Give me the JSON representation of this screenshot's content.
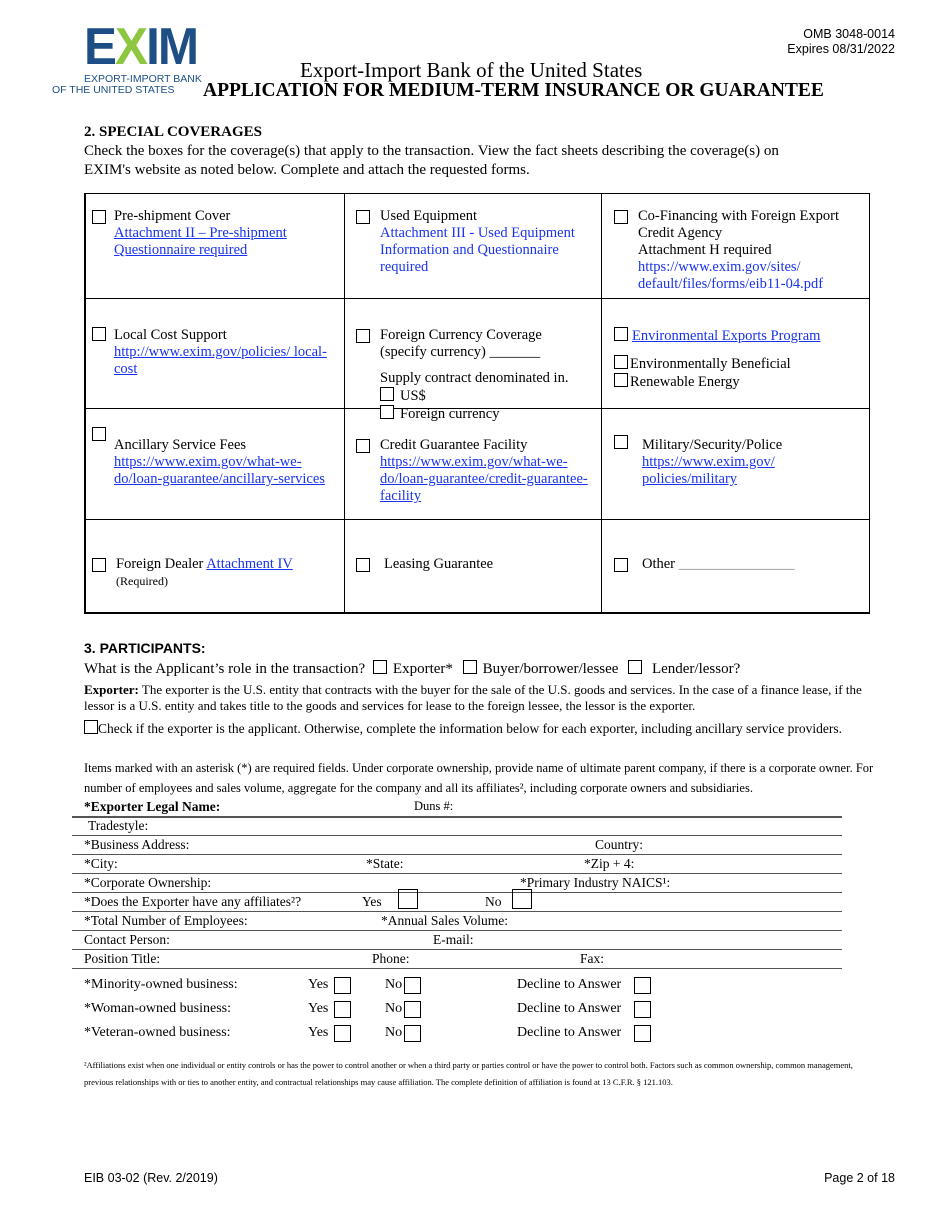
{
  "header": {
    "logo_text": "EXIM",
    "logo_sub1": "EXPORT-IMPORT BANK",
    "logo_sub2": "OF THE UNITED STATES",
    "omb": "OMB 3048-0014",
    "expires": "Expires 08/31/2022",
    "org": "Export-Import Bank of the United States",
    "title": "APPLICATION FOR MEDIUM-TERM INSURANCE OR GUARANTEE",
    "colors": {
      "logo_blue": "#1d4f86",
      "logo_green": "#8dc63f",
      "link": "#1a33ee"
    }
  },
  "section2": {
    "num": "2",
    "heading": ". SPECIAL COVERAGES",
    "intro": "Check the boxes for the coverage(s) that apply to the transaction.  View the fact sheets describing the coverage(s) on EXIM's website as noted below.  Complete and attach the requested forms.",
    "cells": {
      "preshipment": {
        "label": "Pre-shipment Cover",
        "link": "Attachment II – Pre-shipment Questionnaire required"
      },
      "used": {
        "label": "Used Equipment",
        "link": "Attachment III - Used Equipment Information and Questionnaire required"
      },
      "cofin": {
        "label": "Co-Financing with Foreign Export Credit Agency",
        "note": "Attachment H required",
        "link": "https://www.exim.gov/sites/ default/files/forms/eib11-04.pdf"
      },
      "localcost": {
        "label": "Local Cost Support",
        "link": "http://www.exim.gov/policies/ local-cost"
      },
      "currency": {
        "label": "Foreign Currency Coverage",
        "specify": "(specify currency) _______",
        "denominated": "Supply contract denominated in.",
        "opt1": "US$",
        "opt2": "Foreign currency"
      },
      "environmental": {
        "label": "Environmental Exports Program",
        "opt1": "Environmentally Beneficial",
        "opt2": "Renewable Energy"
      },
      "ancillary": {
        "label": "Ancillary Service Fees",
        "link": "https://www.exim.gov/what-we-do/loan-guarantee/ancillary-services"
      },
      "creditfacility": {
        "label": "Credit Guarantee Facility",
        "link": "https://www.exim.gov/what-we-do/loan-guarantee/credit-guarantee-facility"
      },
      "military": {
        "label": "Military/Security/Police",
        "link": "https://www.exim.gov/ policies/military"
      },
      "dealer": {
        "label": "Foreign Dealer ",
        "link": "Attachment IV",
        "note": "(Required)"
      },
      "leasing": {
        "label": "Leasing Guarantee"
      },
      "other": {
        "label": "Other",
        "blank": "________________"
      }
    }
  },
  "section3": {
    "heading": "3. PARTICIPANTS:",
    "role_q": "What is the Applicant’s role in the transaction?",
    "roles": [
      "Exporter*",
      "Buyer/borrower/lessee",
      "Lender/lessor?"
    ],
    "exporter_bold": "Exporter:",
    "exporter_def": " The exporter is the U.S. entity that contracts with the buyer for the sale of the U.S. goods and services.  In the case of a finance lease, if the lessor is a U.S. entity and takes title to the goods and services for lease to the foreign lessee, the lessor is the exporter.",
    "check_applicant": "Check if the exporter is the applicant.  Otherwise, complete the information below for each exporter, including ancillary service providers.",
    "instructions": "Items marked with an asterisk (*) are required fields. Under corporate ownership, provide name of ultimate parent company, if there is a corporate owner. For number of employees and sales volume, aggregate for the company and all its affiliates², including corporate owners and subsidiaries.",
    "legal_name": "*Exporter Legal Name:",
    "duns": "Duns #:",
    "fields": {
      "tradestyle": "Tradestyle:",
      "address": "*Business Address:",
      "country": "Country:",
      "city": "*City:",
      "state": "*State:",
      "zip": "*Zip + 4:",
      "ownership": "*Corporate Ownership:",
      "naics": "*Primary Industry NAICS¹:",
      "affiliates": "*Does the Exporter have any affiliates²?",
      "yes": "Yes",
      "no": "No",
      "employees": "*Total Number of Employees:",
      "sales": "*Annual Sales Volume:",
      "contact": "Contact Person:",
      "email": "E-mail:",
      "position": "Position Title:",
      "phone": "Phone:",
      "fax": "Fax:"
    },
    "ownership_rows": [
      {
        "label": "*Minority-owned business:"
      },
      {
        "label": "*Woman-owned business:"
      },
      {
        "label": "*Veteran-owned business:"
      }
    ],
    "yes": "Yes",
    "no": "No",
    "decline": "Decline to Answer",
    "footnote": "²Affiliations exist when one individual or entity controls or has the power to control another or when a third party or parties control or have the power to control both. Factors such as common ownership, common management, previous relationships with or ties to another entity, and contractual relationships may cause affiliation. The complete definition of affiliation is found at 13 C.F.R. § 121.103."
  },
  "footer": {
    "form": "EIB 03-02 (Rev. 2/2019)",
    "page": "Page 2 of 18"
  }
}
